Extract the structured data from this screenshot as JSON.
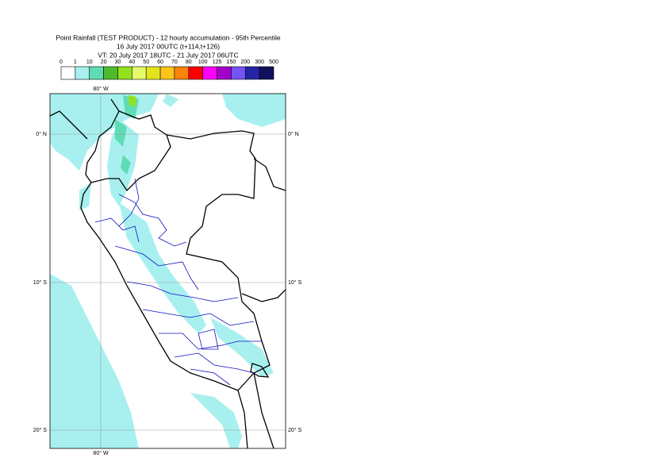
{
  "header": {
    "title_lines": [
      "Point Rainfall (TEST PRODUCT) - 12 hourly accumulation - 95th Percentile",
      "16 July 2017 00UTC (t+114,t+126)",
      "VT: 20 July 2017 18UTC - 21 July 2017 06UTC"
    ]
  },
  "legend": {
    "labels": [
      "0",
      "1",
      "10",
      "20",
      "30",
      "40",
      "50",
      "60",
      "70",
      "80",
      "100",
      "125",
      "150",
      "200",
      "300",
      "500"
    ],
    "colors": [
      "#ffffff",
      "#a8f0f0",
      "#60dcb4",
      "#4cbc2c",
      "#94e01c",
      "#e4fc6c",
      "#e4e41c",
      "#fcc41c",
      "#fc840c",
      "#fc0000",
      "#fc00fc",
      "#a400c8",
      "#7454f4",
      "#2424a4",
      "#10105c"
    ]
  },
  "map": {
    "lon_label": "80° W",
    "lat_labels": [
      "0° N",
      "10° S",
      "20° S"
    ]
  }
}
